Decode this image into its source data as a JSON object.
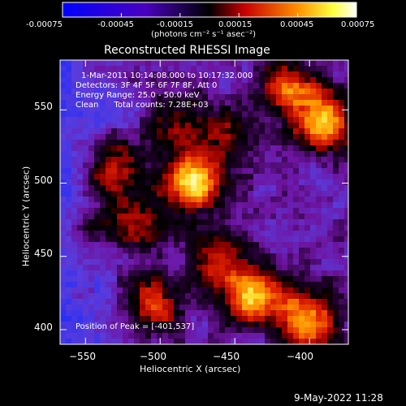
{
  "colorbar": {
    "min": -0.00075,
    "max": 0.00075,
    "tick_labels": [
      "-0.00075",
      "-0.00045",
      "-0.00015",
      "0.00015",
      "0.00045",
      "0.00075"
    ],
    "units": "(photons cm⁻² s⁻¹ asec⁻²)",
    "colors": [
      "#0000ff",
      "#000000",
      "#ff0000",
      "#ffa500",
      "#ffff00",
      "#ffffff"
    ]
  },
  "title": "Reconstructed RHESSI Image",
  "info": {
    "time": "1-Mar-2011 10:14:08.000 to 10:17:32.000",
    "detectors": "Detectors: 3F 4F 5F 6F 7F 8F, Att 0",
    "energy": "Energy Range: 25.0 - 50.0 keV",
    "clean": "Clean      Total counts: 7.28E+03",
    "peak": "Position of Peak = [-401,537]"
  },
  "x_axis": {
    "label": "Heliocentric X (arcsec)",
    "range": [
      -567,
      -374
    ],
    "ticks": [
      {
        "value": -550,
        "label": "−550"
      },
      {
        "value": -500,
        "label": "−500"
      },
      {
        "value": -450,
        "label": "−450"
      },
      {
        "value": -400,
        "label": "−400"
      }
    ]
  },
  "y_axis": {
    "label": "Heliocentric Y (arcsec)",
    "range": [
      390,
      584
    ],
    "ticks": [
      {
        "value": 400,
        "label": "400"
      },
      {
        "value": 450,
        "label": "450"
      },
      {
        "value": 500,
        "label": "500"
      },
      {
        "value": 550,
        "label": "550"
      }
    ]
  },
  "sources": [
    {
      "x": -478,
      "y": 500,
      "strength": 1.0
    },
    {
      "x": -391,
      "y": 542,
      "strength": 0.95
    },
    {
      "x": -415,
      "y": 565,
      "strength": 0.6
    },
    {
      "x": -528,
      "y": 508,
      "strength": 0.65
    },
    {
      "x": -437,
      "y": 422,
      "strength": 0.85
    },
    {
      "x": -402,
      "y": 407,
      "strength": 0.8
    },
    {
      "x": -505,
      "y": 418,
      "strength": 0.6
    },
    {
      "x": -460,
      "y": 447,
      "strength": 0.55
    },
    {
      "x": -510,
      "y": 470,
      "strength": 0.4
    },
    {
      "x": -540,
      "y": 468,
      "strength": 0.35
    },
    {
      "x": -488,
      "y": 540,
      "strength": 0.4
    },
    {
      "x": -455,
      "y": 530,
      "strength": 0.35
    }
  ],
  "date_stamp": "9-May-2022 11:28"
}
